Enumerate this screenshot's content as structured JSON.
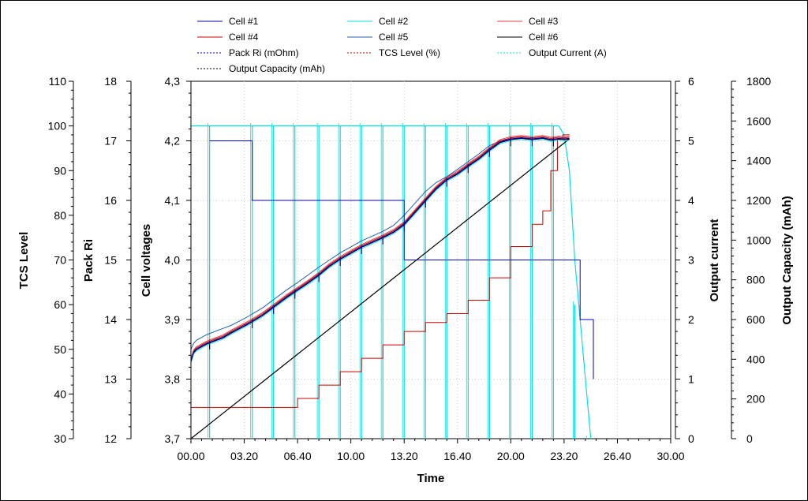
{
  "chart_data": {
    "type": "line",
    "xlabel": "Time",
    "x_ticks": [
      "00.00",
      "03.20",
      "06.40",
      "10.00",
      "13.20",
      "16.40",
      "20.00",
      "23.20",
      "26.40",
      "30.00"
    ],
    "x_unit_note": "hours.minutes",
    "xlim_minutes": [
      0,
      1800
    ],
    "axes": {
      "tcs": {
        "label": "TCS Level",
        "ylim": [
          30,
          110
        ],
        "ticks": [
          "30",
          "40",
          "50",
          "60",
          "70",
          "80",
          "90",
          "100",
          "110"
        ]
      },
      "ri": {
        "label": "Pack Ri",
        "ylim": [
          12,
          18
        ],
        "ticks": [
          "12",
          "13",
          "14",
          "15",
          "16",
          "17",
          "18"
        ]
      },
      "voltage": {
        "label": "Cell voltages",
        "ylim": [
          3.7,
          4.3
        ],
        "ticks": [
          "3,7",
          "3,8",
          "3,9",
          "4,0",
          "4,1",
          "4,2",
          "4,3"
        ]
      },
      "current": {
        "label": "Output current",
        "ylim": [
          0,
          6
        ],
        "ticks": [
          "0",
          "1",
          "2",
          "3",
          "4",
          "5",
          "6"
        ]
      },
      "capacity": {
        "label": "Output Capacity (mAh)",
        "ylim": [
          0,
          1800
        ],
        "ticks": [
          "0",
          "200",
          "400",
          "600",
          "800",
          "1000",
          "1200",
          "1400",
          "1600",
          "1800"
        ]
      }
    },
    "grid": true,
    "legend_position": "top",
    "legend": [
      {
        "name": "Cell #1",
        "color": "#0000a0",
        "dashed": false
      },
      {
        "name": "Cell #2",
        "color": "#00e0e0",
        "dashed": false
      },
      {
        "name": "Cell #3",
        "color": "#e04040",
        "dashed": false
      },
      {
        "name": "Cell #4",
        "color": "#cc0000",
        "dashed": false
      },
      {
        "name": "Cell #5",
        "color": "#2060b0",
        "dashed": false
      },
      {
        "name": "Cell #6",
        "color": "#000000",
        "dashed": false
      },
      {
        "name": "Pack Ri (mOhm)",
        "color": "#0000cc",
        "dashed": true
      },
      {
        "name": "TCS Level (%)",
        "color": "#cc0000",
        "dashed": true
      },
      {
        "name": "Output Current (A)",
        "color": "#00e0e0",
        "dashed": true
      },
      {
        "name": "Output Capacity (mAh)",
        "color": "#000000",
        "dashed": true
      }
    ],
    "series": {
      "cell_voltage_main": {
        "axis": "voltage",
        "x": [
          0,
          10,
          20,
          40,
          60,
          90,
          120,
          150,
          180,
          210,
          240,
          270,
          300,
          330,
          360,
          400,
          440,
          480,
          520,
          560,
          600,
          640,
          680,
          720,
          760,
          800,
          840,
          880,
          920,
          960,
          1000,
          1040,
          1080,
          1120,
          1160,
          1200,
          1240,
          1280,
          1320,
          1350,
          1380,
          1400,
          1420
        ],
        "y": [
          3.83,
          3.845,
          3.85,
          3.855,
          3.86,
          3.865,
          3.87,
          3.878,
          3.885,
          3.892,
          3.9,
          3.908,
          3.918,
          3.928,
          3.938,
          3.95,
          3.962,
          3.975,
          3.99,
          4.002,
          4.012,
          4.022,
          4.03,
          4.038,
          4.047,
          4.06,
          4.08,
          4.1,
          4.12,
          4.135,
          4.145,
          4.158,
          4.17,
          4.185,
          4.198,
          4.203,
          4.205,
          4.203,
          4.205,
          4.202,
          4.204,
          4.203,
          4.204
        ]
      },
      "cell_voltage_cell5": {
        "axis": "voltage",
        "x": [
          0,
          10,
          20,
          40,
          60,
          90,
          120,
          150,
          180,
          210,
          240,
          270,
          300,
          330,
          360,
          400,
          440,
          480,
          520,
          560,
          600,
          640,
          680,
          720,
          760,
          800,
          840,
          880,
          920,
          960,
          1000,
          1040,
          1080,
          1120,
          1160,
          1200,
          1240,
          1280,
          1320,
          1350,
          1380,
          1400,
          1420
        ],
        "y": [
          3.85,
          3.86,
          3.865,
          3.87,
          3.875,
          3.88,
          3.885,
          3.89,
          3.897,
          3.904,
          3.912,
          3.92,
          3.93,
          3.94,
          3.95,
          3.962,
          3.975,
          3.988,
          4.0,
          4.012,
          4.022,
          4.032,
          4.04,
          4.048,
          4.058,
          4.075,
          4.095,
          4.115,
          4.13,
          4.14,
          4.152,
          4.165,
          4.178,
          4.192,
          4.2,
          4.203,
          4.205,
          4.203,
          4.205,
          4.202,
          4.204,
          4.203,
          4.204
        ]
      },
      "tcs_level": {
        "axis": "tcs",
        "x": [
          0,
          400,
          400,
          480,
          480,
          560,
          560,
          640,
          640,
          720,
          720,
          800,
          800,
          880,
          880,
          960,
          960,
          1040,
          1040,
          1120,
          1120,
          1200,
          1200,
          1280,
          1280,
          1320,
          1320,
          1350,
          1350,
          1375,
          1375,
          1395,
          1395,
          1420
        ],
        "y": [
          37,
          37,
          39,
          39,
          42,
          42,
          45,
          45,
          48,
          48,
          51,
          51,
          54,
          54,
          56,
          56,
          58,
          58,
          61,
          61,
          66,
          66,
          73,
          73,
          78,
          78,
          81,
          81,
          90,
          90,
          97,
          97,
          98,
          98
        ]
      },
      "pack_ri": {
        "axis": "ri",
        "x": [
          70,
          230,
          230,
          800,
          800,
          1460,
          1460,
          1510,
          1510
        ],
        "y": [
          17.0,
          17.0,
          16.0,
          16.0,
          15.0,
          15.0,
          14.0,
          14.0,
          13.0
        ]
      },
      "output_capacity": {
        "axis": "capacity",
        "x": [
          0,
          1420
        ],
        "y": [
          0,
          1510
        ]
      },
      "output_current": {
        "axis": "current",
        "x": [
          0,
          1380,
          1400,
          1420,
          1440,
          1460,
          1480,
          1500
        ],
        "y": [
          5.25,
          5.25,
          5.1,
          4.5,
          3.0,
          2.0,
          1.0,
          0.0
        ]
      },
      "current_pulse_times": [
        70,
        230,
        310,
        390,
        480,
        560,
        640,
        720,
        800,
        880,
        960,
        1040,
        1120,
        1200,
        1280,
        1360,
        1440,
        1490
      ]
    }
  }
}
